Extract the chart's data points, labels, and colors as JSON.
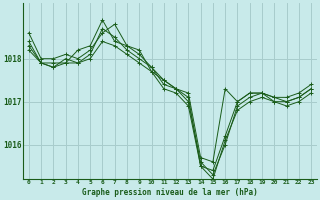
{
  "title": "Graphe pression niveau de la mer (hPa)",
  "bg_color": "#c8eaea",
  "grid_color": "#a8cccc",
  "line_color": "#1a5c1a",
  "marker_color": "#1a5c1a",
  "ylim": [
    1015.2,
    1019.3
  ],
  "yticks": [
    1016,
    1017,
    1018
  ],
  "ytick_labels": [
    "1016",
    "1017",
    "1018"
  ],
  "xlim": [
    -0.5,
    23.5
  ],
  "xticks": [
    0,
    1,
    2,
    3,
    4,
    5,
    6,
    7,
    8,
    9,
    10,
    11,
    12,
    13,
    14,
    15,
    16,
    17,
    18,
    19,
    20,
    21,
    22,
    23
  ],
  "series": [
    [
      1018.6,
      1018.0,
      1018.0,
      1018.1,
      1018.0,
      1018.2,
      1018.6,
      1018.8,
      1018.3,
      1018.2,
      1017.7,
      1017.5,
      1017.3,
      1017.2,
      1015.7,
      1015.6,
      1017.3,
      1017.0,
      1017.2,
      1017.2,
      1017.1,
      1017.1,
      1017.2,
      1017.4
    ],
    [
      1018.4,
      1017.9,
      1017.9,
      1017.9,
      1018.2,
      1018.3,
      1018.9,
      1018.4,
      1018.3,
      1018.1,
      1017.8,
      1017.5,
      1017.3,
      1017.1,
      1015.5,
      1015.4,
      1016.2,
      1017.0,
      1017.2,
      1017.2,
      1017.1,
      1017.0,
      1017.1,
      1017.3
    ],
    [
      1018.3,
      1017.9,
      1017.8,
      1018.0,
      1017.9,
      1018.1,
      1018.7,
      1018.5,
      1018.2,
      1018.0,
      1017.8,
      1017.4,
      1017.3,
      1017.0,
      1015.6,
      1015.3,
      1016.0,
      1016.9,
      1017.1,
      1017.2,
      1017.0,
      1017.0,
      1017.1,
      1017.3
    ],
    [
      1018.2,
      1017.9,
      1017.8,
      1017.9,
      1017.9,
      1018.0,
      1018.4,
      1018.3,
      1018.1,
      1017.9,
      1017.7,
      1017.3,
      1017.2,
      1016.9,
      1015.5,
      1015.2,
      1016.1,
      1016.8,
      1017.0,
      1017.1,
      1017.0,
      1016.9,
      1017.0,
      1017.2
    ]
  ]
}
